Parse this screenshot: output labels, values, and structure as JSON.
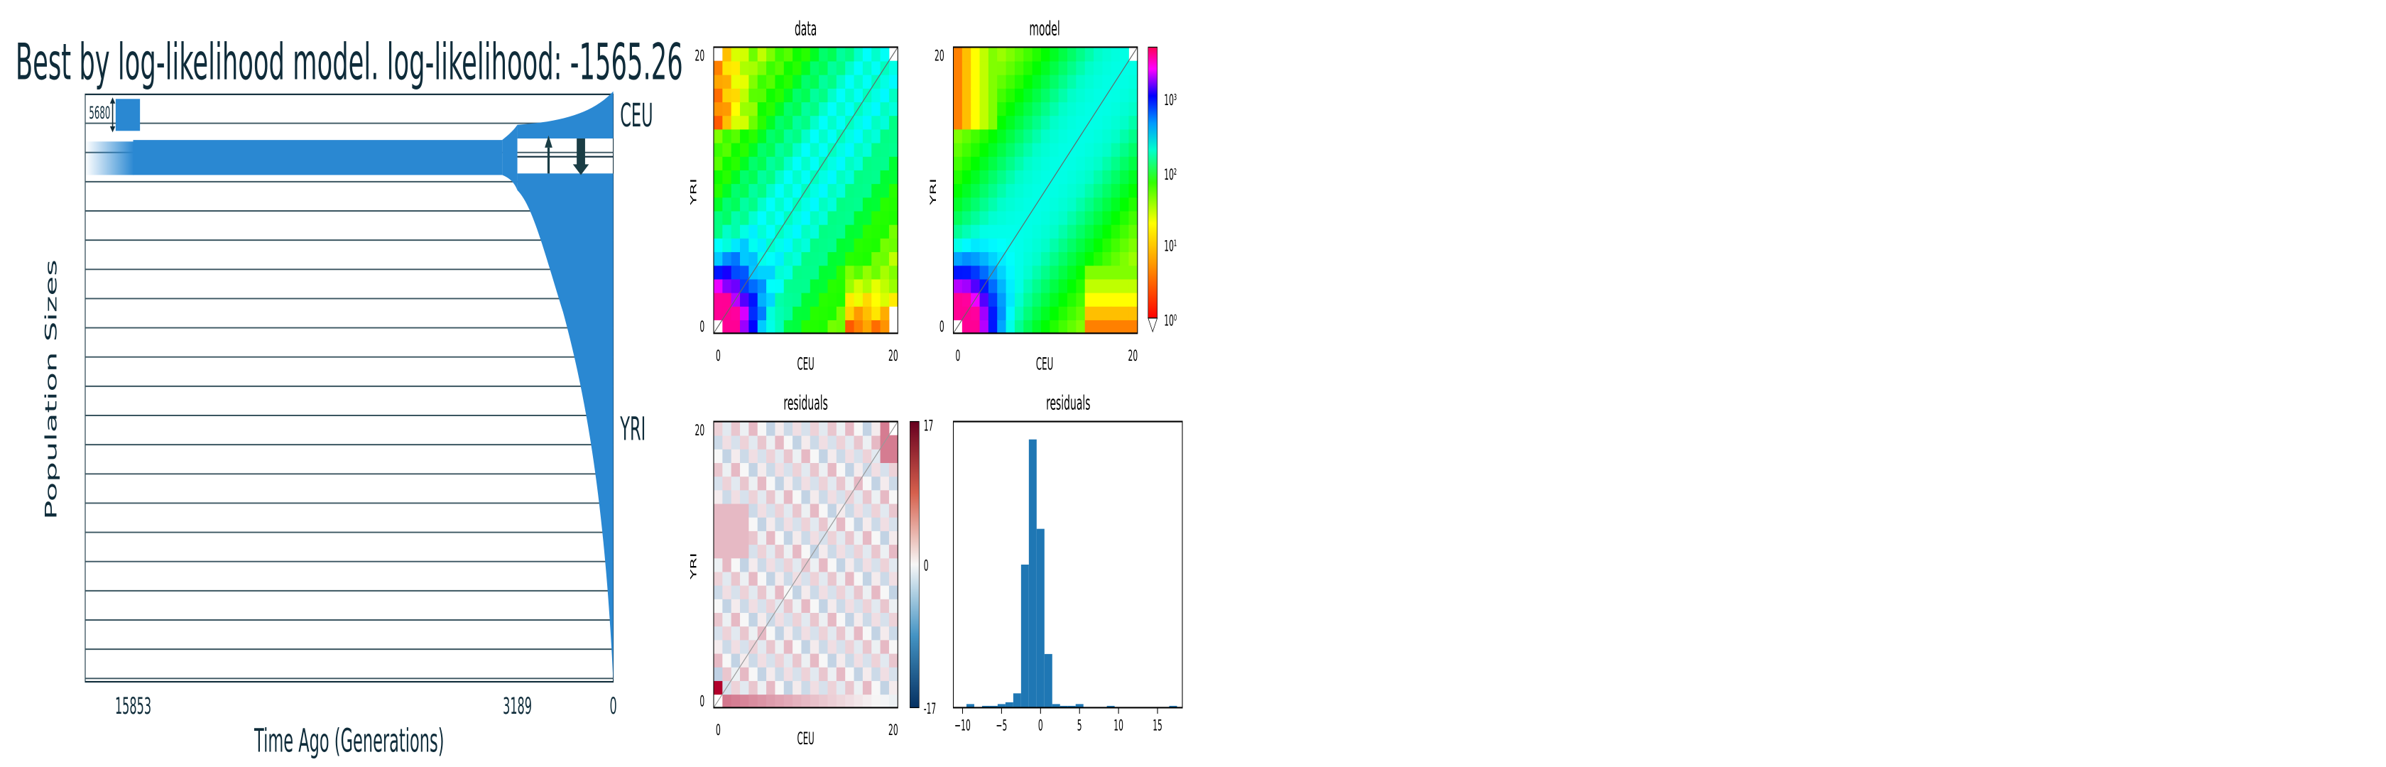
{
  "demography": {
    "title": "Best by log-likelihood model. log-likelihood: -1565.26",
    "ylabel": "Population Sizes",
    "xlabel": "Time Ago (Generations)",
    "ticks": [
      "15853",
      "3189",
      "0"
    ],
    "populations": [
      "CEU",
      "YRI"
    ],
    "scale_label": "5680",
    "colors": {
      "fill": "#2a88d2",
      "text": "#0f2c3a",
      "arrow": "#1a3d45"
    }
  },
  "sfs_panels": {
    "data_title": "data",
    "model_title": "model",
    "residuals_title": "residuals",
    "hist_title": "residuals",
    "xlabel": "CEU",
    "ylabel": "YRI",
    "tick_0": "0",
    "tick_20": "20",
    "colorbar_log_ticks": [
      "10⁰",
      "10¹",
      "10²",
      "10³"
    ],
    "colorbar_res_ticks": [
      "17",
      "0",
      "-17"
    ]
  },
  "chart_data": [
    {
      "type": "area",
      "title": "Best by log-likelihood model. log-likelihood: -1565.26",
      "xlabel": "Time Ago (Generations)",
      "ylabel": "Population Sizes",
      "xticks": [
        15853,
        3189,
        0
      ],
      "series": [
        {
          "name": "CEU",
          "split_time": 3189
        },
        {
          "name": "YRI"
        }
      ]
    },
    {
      "type": "heatmap",
      "title": "data",
      "xlabel": "CEU",
      "ylabel": "YRI",
      "xlim": [
        0,
        20
      ],
      "ylim": [
        0,
        20
      ],
      "color_scale": "log",
      "colorbar_range": [
        1,
        3000
      ]
    },
    {
      "type": "heatmap",
      "title": "model",
      "xlabel": "CEU",
      "ylabel": "YRI",
      "xlim": [
        0,
        20
      ],
      "ylim": [
        0,
        20
      ],
      "color_scale": "log",
      "colorbar_range": [
        1,
        3000
      ]
    },
    {
      "type": "heatmap",
      "title": "residuals",
      "xlabel": "CEU",
      "ylabel": "YRI",
      "xlim": [
        0,
        20
      ],
      "ylim": [
        0,
        20
      ],
      "colorbar_range": [
        -17,
        17
      ]
    },
    {
      "type": "bar",
      "title": "residuals",
      "xticks": [
        -10,
        -5,
        0,
        5,
        10,
        15
      ],
      "bin_centers": [
        -9,
        -8,
        -7,
        -6,
        -5,
        -4,
        -3,
        -2,
        -1,
        0,
        1,
        2,
        3,
        4,
        5,
        6,
        7,
        8,
        9,
        10,
        11,
        12,
        13,
        14,
        15,
        16,
        17
      ],
      "values": [
        2,
        0,
        1,
        1,
        2,
        3,
        8,
        80,
        150,
        100,
        30,
        2,
        1,
        1,
        2,
        0,
        0,
        0,
        1,
        0,
        0,
        0,
        0,
        0,
        0,
        0,
        1
      ],
      "ylim": [
        0,
        160
      ]
    }
  ]
}
